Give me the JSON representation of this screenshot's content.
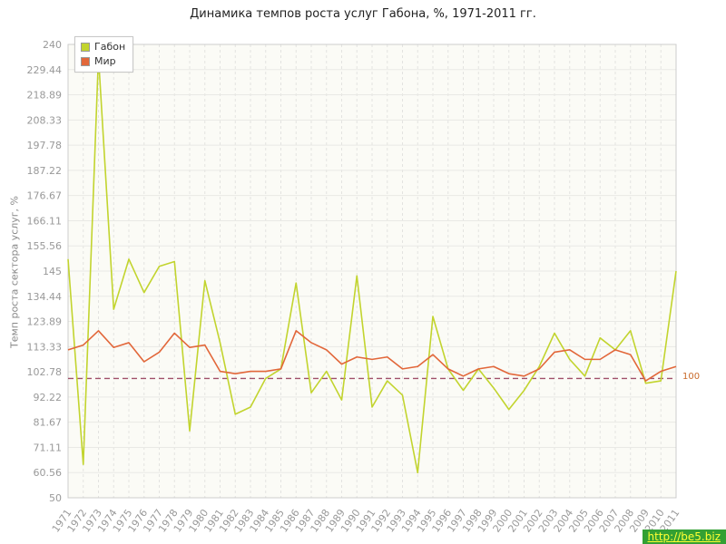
{
  "page": {
    "title": "Динамика темпов роста услуг Габона, %, 1971-2011 гг."
  },
  "watermark": {
    "text": "http://be5.biz"
  },
  "reference_line": {
    "value": 100,
    "label": "100",
    "color": "#a0506a",
    "label_color": "#c96a2a"
  },
  "chart_data": {
    "type": "line",
    "title": "Динамика темпов роста услуг Габона, %, 1971-2011 гг.",
    "xlabel": "",
    "ylabel": "Темп роста сектора услуг, %",
    "ylim": [
      50,
      240
    ],
    "grid": true,
    "legend_position": "top-left",
    "y_tick_labels": [
      "240",
      "229.44",
      "218.89",
      "208.33",
      "197.78",
      "187.22",
      "176.67",
      "166.11",
      "155.56",
      "145",
      "134.44",
      "123.89",
      "113.33",
      "102.78",
      "92.22",
      "81.67",
      "71.11",
      "60.56",
      "50"
    ],
    "categories": [
      "1971",
      "1972",
      "1973",
      "1974",
      "1975",
      "1976",
      "1977",
      "1978",
      "1979",
      "1980",
      "1981",
      "1982",
      "1983",
      "1984",
      "1985",
      "1986",
      "1987",
      "1988",
      "1989",
      "1990",
      "1991",
      "1992",
      "1993",
      "1994",
      "1995",
      "1996",
      "1997",
      "1998",
      "1999",
      "2000",
      "2001",
      "2002",
      "2003",
      "2004",
      "2005",
      "2006",
      "2007",
      "2008",
      "2009",
      "2010",
      "2011"
    ],
    "series": [
      {
        "name": "Габон",
        "color": "#c2d42e",
        "values": [
          150,
          64,
          235,
          129,
          150,
          136,
          147,
          149,
          78,
          141,
          115,
          85,
          88,
          100,
          104,
          140,
          94,
          103,
          91,
          143,
          88,
          99,
          93,
          60.5,
          126,
          104,
          95,
          104,
          96,
          87,
          95,
          105,
          119,
          108,
          101,
          117,
          112,
          120,
          98,
          99,
          145
        ]
      },
      {
        "name": "Мир",
        "color": "#e2673a",
        "values": [
          112,
          114,
          120,
          113,
          115,
          107,
          111,
          119,
          113,
          114,
          103,
          102,
          103,
          103,
          104,
          120,
          115,
          112,
          106,
          109,
          108,
          109,
          104,
          105,
          110,
          104,
          101,
          104,
          105,
          102,
          101,
          104,
          111,
          112,
          108,
          108,
          112,
          110,
          99,
          103,
          105
        ]
      }
    ]
  }
}
